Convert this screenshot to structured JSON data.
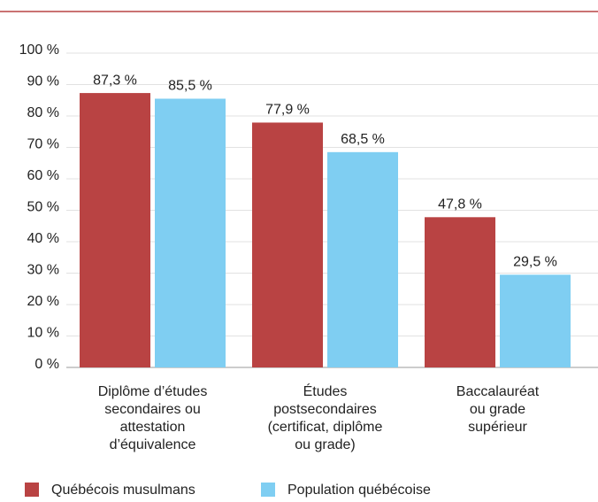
{
  "chart_data": {
    "type": "bar",
    "categories": [
      [
        "Diplôme d’études",
        "secondaires ou",
        "attestation",
        "d’équivalence"
      ],
      [
        "Études",
        "postsecondaires",
        "(certificat, diplôme",
        "ou grade)"
      ],
      [
        "Baccalauréat",
        "ou grade",
        "supérieur"
      ]
    ],
    "series": [
      {
        "name": "Québécois musulmans",
        "color": "#b94343",
        "values": [
          87.3,
          77.9,
          47.8
        ],
        "value_labels": [
          "87,3 %",
          "77,9 %",
          "47,8 %"
        ]
      },
      {
        "name": "Population québécoise",
        "color": "#7fcef2",
        "values": [
          85.5,
          68.5,
          29.5
        ],
        "value_labels": [
          "85,5 %",
          "68,5 %",
          "29,5 %"
        ]
      }
    ],
    "ylim": [
      0,
      100
    ],
    "yticks": [
      {
        "value": 0,
        "label": "0 %"
      },
      {
        "value": 10,
        "label": "10 %"
      },
      {
        "value": 20,
        "label": "20 %"
      },
      {
        "value": 30,
        "label": "30 %"
      },
      {
        "value": 40,
        "label": "40 %"
      },
      {
        "value": 50,
        "label": "50 %"
      },
      {
        "value": 60,
        "label": "60 %"
      },
      {
        "value": 70,
        "label": "70 %"
      },
      {
        "value": 80,
        "label": "80 %"
      },
      {
        "value": 90,
        "label": "90 %"
      },
      {
        "value": 100,
        "label": "100 %"
      }
    ],
    "grid": true,
    "legend": "bottom"
  }
}
